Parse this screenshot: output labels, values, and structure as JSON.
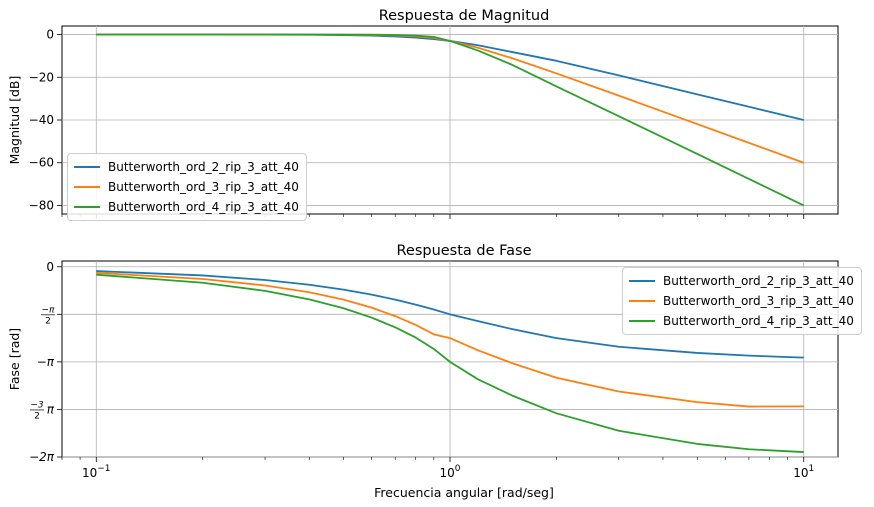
{
  "chart_data": [
    {
      "type": "line",
      "title": "Respuesta de Magnitud",
      "xlabel": "",
      "ylabel": "Magnitud [dB]",
      "xscale": "log",
      "xlim": [
        0.08,
        12.5
      ],
      "ylim": [
        -84,
        4
      ],
      "yticks": [
        0,
        -20,
        -40,
        -60,
        -80
      ],
      "ytick_labels": [
        "0",
        "−20",
        "−40",
        "−60",
        "−80"
      ],
      "grid": true,
      "legend_placement": "lower left",
      "x": [
        0.1,
        0.2,
        0.3,
        0.4,
        0.5,
        0.6,
        0.7,
        0.8,
        0.9,
        1.0,
        1.2,
        1.5,
        2.0,
        3.0,
        5.0,
        7.0,
        10.0
      ],
      "series": [
        {
          "name": "Butterworth_ord_2_rip_3_att_40",
          "color": "#1f77b4",
          "values": [
            0.0,
            -0.01,
            -0.03,
            -0.11,
            -0.26,
            -0.52,
            -0.91,
            -1.46,
            -2.15,
            -3.0,
            -5.02,
            -8.2,
            -12.3,
            -19.1,
            -28.0,
            -33.8,
            -40.0
          ]
        },
        {
          "name": "Butterworth_ord_3_rip_3_att_40",
          "color": "#ff7f0e",
          "values": [
            0.0,
            0.0,
            0.0,
            -0.02,
            -0.07,
            -0.19,
            -0.43,
            -0.85,
            -1.57,
            -3.0,
            -6.2,
            -11.1,
            -18.2,
            -28.6,
            -41.9,
            -50.7,
            -60.0
          ]
        },
        {
          "name": "Butterworth_ord_4_rip_3_att_40",
          "color": "#2ca02c",
          "values": [
            0.0,
            0.0,
            0.0,
            0.0,
            -0.02,
            -0.07,
            -0.2,
            -0.51,
            -1.11,
            -3.0,
            -7.5,
            -14.2,
            -24.3,
            -38.2,
            -55.9,
            -67.6,
            -80.0
          ]
        }
      ]
    },
    {
      "type": "line",
      "title": "Respuesta de Fase",
      "xlabel": "Frecuencia angular [rad/seg]",
      "ylabel": "Fase [rad]",
      "xscale": "log",
      "xlim": [
        0.08,
        12.5
      ],
      "xticks": [
        0.1,
        1,
        10
      ],
      "ylim": [
        -6.283,
        0.19
      ],
      "yticks": [
        0,
        -1.5708,
        -3.1416,
        -4.7124,
        -6.2832
      ],
      "ytick_labels": [
        "0",
        "−π/2",
        "−π",
        "−3/2·π",
        "−2π"
      ],
      "grid": true,
      "legend_placement": "upper right",
      "x": [
        0.1,
        0.2,
        0.3,
        0.4,
        0.5,
        0.6,
        0.7,
        0.8,
        0.9,
        1.0,
        1.2,
        1.5,
        2.0,
        3.0,
        5.0,
        7.0,
        10.0
      ],
      "series": [
        {
          "name": "Butterworth_ord_2_rip_3_att_40",
          "color": "#1f77b4",
          "values": [
            -0.142,
            -0.287,
            -0.437,
            -0.594,
            -0.755,
            -0.92,
            -1.086,
            -1.251,
            -1.413,
            -1.571,
            -1.796,
            -2.06,
            -2.356,
            -2.643,
            -2.846,
            -2.936,
            -3.0
          ]
        },
        {
          "name": "Butterworth_ord_3_rip_3_att_40",
          "color": "#ff7f0e",
          "values": [
            -0.2,
            -0.404,
            -0.618,
            -0.843,
            -1.087,
            -1.35,
            -1.63,
            -1.922,
            -2.232,
            -2.356,
            -2.76,
            -3.186,
            -3.666,
            -4.119,
            -4.472,
            -4.617,
            -4.61
          ]
        },
        {
          "name": "Butterworth_ord_4_rip_3_att_40",
          "color": "#2ca02c",
          "values": [
            -0.262,
            -0.527,
            -0.797,
            -1.078,
            -1.37,
            -1.678,
            -2.001,
            -2.339,
            -2.715,
            -3.142,
            -3.717,
            -4.256,
            -4.84,
            -5.417,
            -5.851,
            -6.027,
            -6.12
          ]
        }
      ]
    }
  ],
  "legend_top": {
    "items": [
      {
        "label": "Butterworth_ord_2_rip_3_att_40",
        "color": "#1f77b4"
      },
      {
        "label": "Butterworth_ord_3_rip_3_att_40",
        "color": "#ff7f0e"
      },
      {
        "label": "Butterworth_ord_4_rip_3_att_40",
        "color": "#2ca02c"
      }
    ]
  },
  "legend_bottom": {
    "items": [
      {
        "label": "Butterworth_ord_2_rip_3_att_40",
        "color": "#1f77b4"
      },
      {
        "label": "Butterworth_ord_3_rip_3_att_40",
        "color": "#ff7f0e"
      },
      {
        "label": "Butterworth_ord_4_rip_3_att_40",
        "color": "#2ca02c"
      }
    ]
  }
}
